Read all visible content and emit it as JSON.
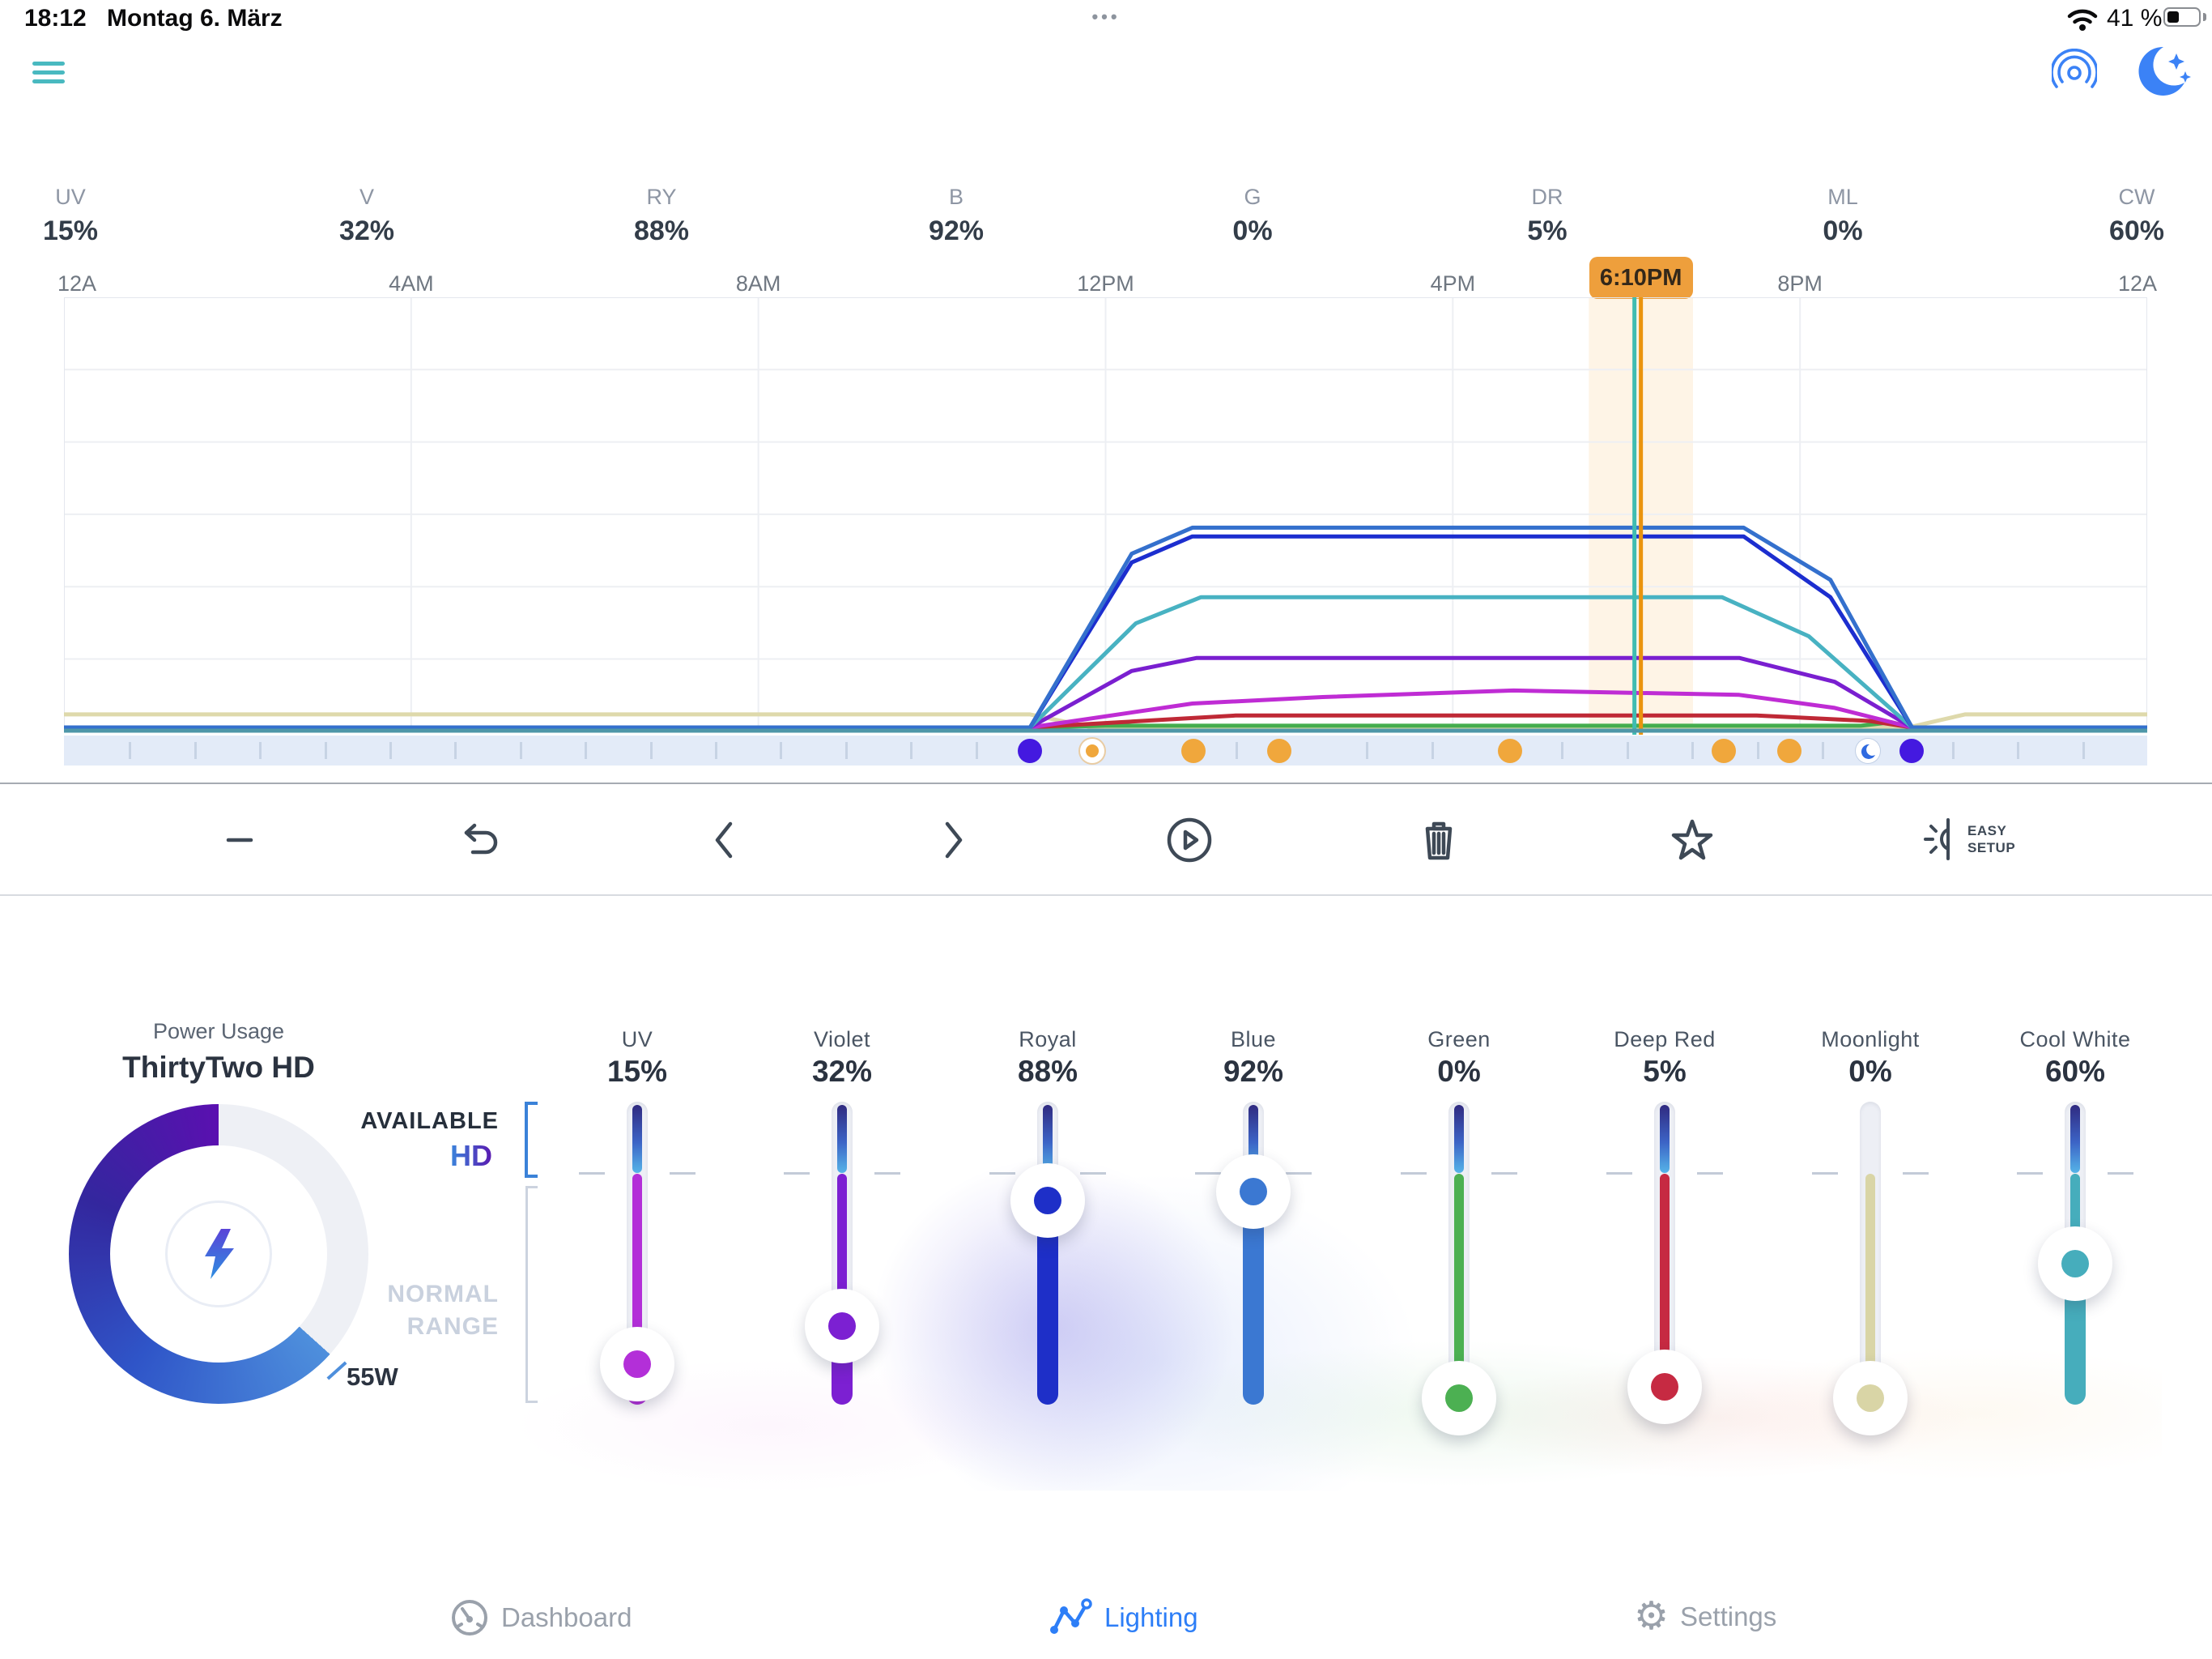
{
  "status_bar": {
    "time": "18:12",
    "date": "Montag 6. März",
    "ellipsis": "•••",
    "battery_text": "41 %",
    "battery_level": 0.41
  },
  "channels_header": [
    {
      "abbr": "UV",
      "value": "15%"
    },
    {
      "abbr": "V",
      "value": "32%"
    },
    {
      "abbr": "RY",
      "value": "88%"
    },
    {
      "abbr": "B",
      "value": "92%"
    },
    {
      "abbr": "G",
      "value": "0%"
    },
    {
      "abbr": "DR",
      "value": "5%"
    },
    {
      "abbr": "ML",
      "value": "0%"
    },
    {
      "abbr": "CW",
      "value": "60%"
    }
  ],
  "chart_data": {
    "type": "line",
    "title": "Daily lighting schedule",
    "x_unit": "hour-of-day",
    "x_range": [
      0,
      24
    ],
    "y_unit": "channel intensity %",
    "y_range_displayed": [
      0,
      200
    ],
    "grid": true,
    "axis_labels_hours": [
      0,
      4,
      8,
      12,
      16,
      20,
      24
    ],
    "axis_labels": [
      "12A",
      "4AM",
      "8AM",
      "12PM",
      "4PM",
      "8PM",
      "12A"
    ],
    "cursor": {
      "label": "6:10PM",
      "hour": 18.167,
      "band_halfwidth_hours": 0.6,
      "badge_color": "#ee9f3c",
      "line_color": "#ea940e",
      "time_line_color": "#3fbcb2"
    },
    "series": [
      {
        "name": "Moonlight",
        "color": "#ded9ab",
        "points": [
          [
            0,
            6
          ],
          [
            11.13,
            6
          ],
          [
            11.85,
            0
          ],
          [
            21.25,
            0
          ],
          [
            21.9,
            6
          ],
          [
            24,
            6
          ]
        ]
      },
      {
        "name": "Green",
        "color": "#44ad4e",
        "points": [
          [
            0,
            0
          ],
          [
            11.2,
            0
          ],
          [
            12,
            0.8
          ],
          [
            20.7,
            0.8
          ],
          [
            21.05,
            2.4
          ],
          [
            21.29,
            0
          ],
          [
            24,
            0
          ]
        ]
      },
      {
        "name": "Deep Red",
        "color": "#bf2936",
        "points": [
          [
            0,
            0
          ],
          [
            11.13,
            0
          ],
          [
            13.5,
            5.5
          ],
          [
            19.5,
            5.5
          ],
          [
            20.8,
            3
          ],
          [
            21.29,
            0
          ],
          [
            24,
            0
          ]
        ]
      },
      {
        "name": "UV",
        "color": "#bf2cd4",
        "points": [
          [
            0,
            0
          ],
          [
            11.13,
            0
          ],
          [
            13,
            11
          ],
          [
            14.5,
            14
          ],
          [
            16.7,
            17
          ],
          [
            19.3,
            15
          ],
          [
            20.4,
            9
          ],
          [
            21.29,
            0
          ],
          [
            24,
            0
          ]
        ]
      },
      {
        "name": "Violet",
        "color": "#7a1fd0",
        "points": [
          [
            0,
            0
          ],
          [
            11.13,
            0
          ],
          [
            12.3,
            26
          ],
          [
            13.05,
            32
          ],
          [
            19.3,
            32
          ],
          [
            20.4,
            21
          ],
          [
            21.29,
            0
          ],
          [
            24,
            0
          ]
        ]
      },
      {
        "name": "Cool White",
        "color": "#48b2c2",
        "points": [
          [
            0,
            0
          ],
          [
            11.13,
            0
          ],
          [
            12.35,
            48
          ],
          [
            13.1,
            60
          ],
          [
            19.1,
            60
          ],
          [
            20.1,
            42
          ],
          [
            21.29,
            0
          ],
          [
            24,
            0
          ]
        ]
      },
      {
        "name": "Royal",
        "color": "#1c2ecf",
        "points": [
          [
            0,
            0
          ],
          [
            11.13,
            0
          ],
          [
            12.3,
            76
          ],
          [
            13,
            88
          ],
          [
            19.35,
            88
          ],
          [
            20.35,
            60
          ],
          [
            21.29,
            0
          ],
          [
            24,
            0
          ]
        ]
      },
      {
        "name": "Blue",
        "color": "#3470cd",
        "points": [
          [
            0,
            0
          ],
          [
            11.13,
            0
          ],
          [
            12.3,
            80
          ],
          [
            13,
            92
          ],
          [
            19.35,
            92
          ],
          [
            20.35,
            68
          ],
          [
            21.29,
            0
          ],
          [
            24,
            0
          ]
        ]
      }
    ]
  },
  "keyframes": [
    {
      "hour": 11.13,
      "type": "indigo"
    },
    {
      "hour": 11.85,
      "type": "orange-ring"
    },
    {
      "hour": 13.01,
      "type": "orange"
    },
    {
      "hour": 14.0,
      "type": "orange"
    },
    {
      "hour": 16.66,
      "type": "orange"
    },
    {
      "hour": 19.12,
      "type": "orange"
    },
    {
      "hour": 19.88,
      "type": "orange"
    },
    {
      "hour": 20.78,
      "type": "moon"
    },
    {
      "hour": 21.29,
      "type": "indigo"
    }
  ],
  "keyframe_colors": {
    "indigo": "#4419e0",
    "orange": "#f0a73c"
  },
  "toolbar": {
    "easy_setup_line1": "EASY",
    "easy_setup_line2": "SETUP"
  },
  "power": {
    "title": "Power Usage",
    "device": "ThirtyTwo HD",
    "watts": "55W",
    "arc_start_deg": 132
  },
  "range_labels": {
    "available": "AVAILABLE",
    "hd": "HD",
    "normal_line1": "NORMAL",
    "normal_line2": "RANGE"
  },
  "sliders": [
    {
      "name": "UV",
      "display": "15%",
      "value": 15,
      "color": "#b32fd8",
      "has_hd": true
    },
    {
      "name": "Violet",
      "display": "32%",
      "value": 32,
      "color": "#7c20d2",
      "has_hd": true
    },
    {
      "name": "Royal",
      "display": "88%",
      "value": 88,
      "color": "#1e2fc8",
      "has_hd": true
    },
    {
      "name": "Blue",
      "display": "92%",
      "value": 92,
      "color": "#3b78d2",
      "has_hd": true
    },
    {
      "name": "Green",
      "display": "0%",
      "value": 0,
      "color": "#4cb052",
      "has_hd": true
    },
    {
      "name": "Deep Red",
      "display": "5%",
      "value": 5,
      "color": "#c62a42",
      "has_hd": true
    },
    {
      "name": "Moonlight",
      "display": "0%",
      "value": 0,
      "color": "#d9d5a6",
      "has_hd": false
    },
    {
      "name": "Cool White",
      "display": "60%",
      "value": 60,
      "color": "#46adbc",
      "has_hd": true
    }
  ],
  "nav": [
    {
      "label": "Dashboard",
      "active": false
    },
    {
      "label": "Lighting",
      "active": true
    },
    {
      "label": "Settings",
      "active": false
    }
  ]
}
